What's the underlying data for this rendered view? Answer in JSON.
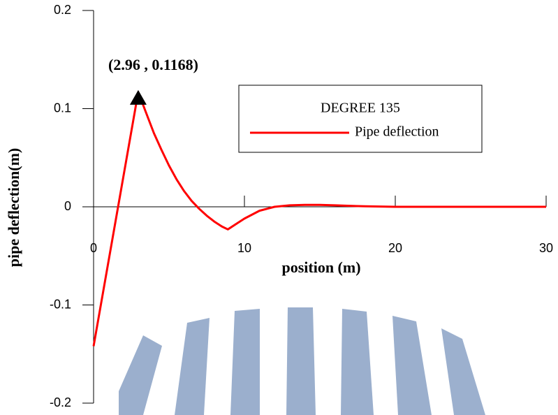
{
  "chart_data": {
    "type": "line",
    "xlabel": "position (m)",
    "ylabel": "pipe deflection(m)",
    "legend_title": "DEGREE 135",
    "annotation": {
      "text": "(2.96 , 0.1168)",
      "x": 2.96,
      "y": 0.1168
    },
    "x": [
      0,
      2.96,
      3.5,
      4,
      4.5,
      5,
      5.5,
      6,
      6.5,
      7,
      7.5,
      8,
      8.5,
      8.9,
      9.5,
      10,
      10.5,
      11,
      11.5,
      12,
      13,
      14,
      15,
      16,
      17,
      18,
      20,
      25,
      30
    ],
    "series": [
      {
        "name": "Pipe deflection",
        "color": "#ff0000",
        "values": [
          -0.142,
          0.1168,
          0.095,
          0.075,
          0.058,
          0.042,
          0.028,
          0.016,
          0.006,
          -0.002,
          -0.009,
          -0.015,
          -0.02,
          -0.023,
          -0.017,
          -0.012,
          -0.008,
          -0.004,
          -0.002,
          0,
          0.0015,
          0.002,
          0.002,
          0.0015,
          0.001,
          0.0005,
          0,
          0,
          0
        ]
      }
    ],
    "xlim": [
      0,
      30
    ],
    "xticks": [
      0,
      10,
      20,
      30
    ],
    "ylim": [
      -0.2,
      0.2
    ],
    "yticks": [
      0.2,
      0.1,
      0,
      -0.1,
      -0.2
    ],
    "legend": "upper right"
  }
}
